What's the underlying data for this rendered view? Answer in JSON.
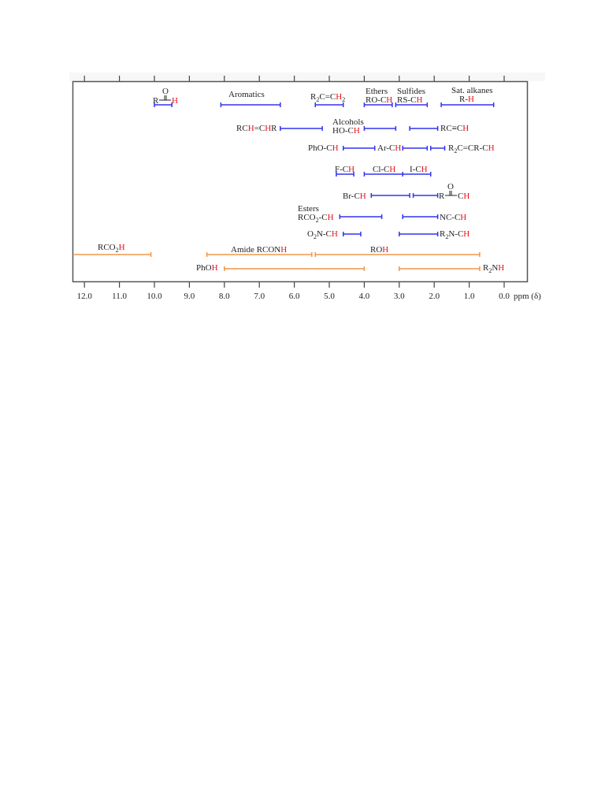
{
  "chart_data": {
    "type": "range-bar",
    "title": "",
    "xlabel": "ppm (δ)",
    "ylabel": "",
    "xlim": [
      12.0,
      0.0
    ],
    "x_reversed": true,
    "grid": false,
    "ticks": [
      "12.0",
      "11.0",
      "10.0",
      "9.0",
      "8.0",
      "7.0",
      "6.0",
      "5.0",
      "4.0",
      "3.0",
      "2.0",
      "1.0",
      "0.0"
    ],
    "tick_values": [
      12,
      11,
      10,
      9,
      8,
      7,
      6,
      5,
      4,
      3,
      2,
      1,
      0
    ],
    "colors": {
      "C-H": "#3333ee",
      "X-H": "#f0954a",
      "highlight_H": "#e8101a",
      "frame": "#555555"
    },
    "series": [
      {
        "name": "Aldehyde R-CO-H",
        "category": "C-H",
        "from": 10.0,
        "to": 9.5,
        "row": 0
      },
      {
        "name": "Aromatics",
        "category": "C-H",
        "from": 8.1,
        "to": 6.4,
        "row": 0
      },
      {
        "name": "R2C=CH2",
        "category": "C-H",
        "from": 5.4,
        "to": 4.6,
        "row": 0
      },
      {
        "name": "Ethers RO-CH",
        "category": "C-H",
        "from": 4.0,
        "to": 3.2,
        "row": 0
      },
      {
        "name": "Sulfides RS-CH",
        "category": "C-H",
        "from": 3.1,
        "to": 2.2,
        "row": 0
      },
      {
        "name": "Sat. alkanes R-H",
        "category": "C-H",
        "from": 1.8,
        "to": 0.3,
        "row": 0
      },
      {
        "name": "RCH=CHR",
        "category": "C-H",
        "from": 6.4,
        "to": 5.2,
        "row": 1
      },
      {
        "name": "Alcohols HO-CH",
        "category": "C-H",
        "from": 4.0,
        "to": 3.1,
        "row": 1
      },
      {
        "name": "RC≡CH",
        "category": "C-H",
        "from": 2.7,
        "to": 1.9,
        "row": 1
      },
      {
        "name": "PhO-CH",
        "category": "C-H",
        "from": 4.6,
        "to": 3.7,
        "row": 2
      },
      {
        "name": "Ar-CH",
        "category": "C-H",
        "from": 2.9,
        "to": 2.2,
        "row": 2
      },
      {
        "name": "R2C=CR-CH",
        "category": "C-H",
        "from": 2.1,
        "to": 1.7,
        "row": 2
      },
      {
        "name": "F-CH",
        "category": "C-H",
        "from": 4.8,
        "to": 4.3,
        "row": 3
      },
      {
        "name": "Cl-CH",
        "category": "C-H",
        "from": 4.0,
        "to": 2.9,
        "row": 3
      },
      {
        "name": "I-CH",
        "category": "C-H",
        "from": 2.9,
        "to": 2.1,
        "row": 3
      },
      {
        "name": "Br-CH",
        "category": "C-H",
        "from": 3.8,
        "to": 2.7,
        "row": 4
      },
      {
        "name": "R-CO-CH",
        "category": "C-H",
        "from": 2.6,
        "to": 1.9,
        "row": 4
      },
      {
        "name": "Esters RCO2-CH",
        "category": "C-H",
        "from": 4.7,
        "to": 3.5,
        "row": 5
      },
      {
        "name": "NC-CH",
        "category": "C-H",
        "from": 2.9,
        "to": 1.9,
        "row": 5
      },
      {
        "name": "O2N-CH",
        "category": "C-H",
        "from": 4.6,
        "to": 4.1,
        "row": 6
      },
      {
        "name": "R2N-CH",
        "category": "C-H",
        "from": 3.0,
        "to": 1.9,
        "row": 6
      },
      {
        "name": "RCO2H",
        "category": "X-H",
        "from": 12.3,
        "to": 10.1,
        "row": 7
      },
      {
        "name": "Amide RCONH",
        "category": "X-H",
        "from": 8.5,
        "to": 5.5,
        "row": 7
      },
      {
        "name": "ROH",
        "category": "X-H",
        "from": 5.4,
        "to": 0.7,
        "row": 7
      },
      {
        "name": "PhOH",
        "category": "X-H",
        "from": 8.0,
        "to": 4.0,
        "row": 8
      },
      {
        "name": "R2NH",
        "category": "X-H",
        "from": 3.0,
        "to": 0.7,
        "row": 8
      }
    ]
  },
  "axis": {
    "ticks": [
      "12.0",
      "11.0",
      "10.0",
      "9.0",
      "8.0",
      "7.0",
      "6.0",
      "5.0",
      "4.0",
      "3.0",
      "2.0",
      "1.0",
      "0.0"
    ],
    "unit_label": "ppm (δ)"
  },
  "labels": {
    "aldehyde": {
      "pre": "R",
      "o": "O",
      "post": "",
      "h": "H"
    },
    "aromatics": "Aromatics",
    "alkene_terminal": {
      "pre": "R",
      "sub1": "2",
      "mid": "C=C",
      "h": "H",
      "sub2": "2"
    },
    "ethers_group": "Ethers",
    "ethers": {
      "pre": "RO-C",
      "h": "H"
    },
    "sulfides_group": "Sulfides",
    "sulfides": {
      "pre": "RS-C",
      "h": "H"
    },
    "alkanes_group": "Sat. alkanes",
    "alkanes": {
      "pre": "R-",
      "h": "H"
    },
    "alkene_internal": {
      "p1": "RC",
      "h1": "H",
      "p2": "=C",
      "h2": "H",
      "p3": "R"
    },
    "alcohols_group": "Alcohols",
    "alcohols": {
      "pre": "HO-C",
      "h": "H"
    },
    "alkyne": {
      "pre": "RC≡C",
      "h": "H"
    },
    "phenyl_ether": {
      "pre": "PhO-C",
      "h": "H"
    },
    "benzylic": {
      "pre": "Ar-C",
      "h": "H"
    },
    "allylic": {
      "pre": "R",
      "sub": "2",
      "mid": "C=CR-C",
      "h": "H"
    },
    "fluoride": {
      "pre": "F-C",
      "h": "H"
    },
    "chloride": {
      "pre": "Cl-C",
      "h": "H"
    },
    "iodide": {
      "pre": "I-C",
      "h": "H"
    },
    "bromide": {
      "pre": "Br-C",
      "h": "H"
    },
    "ketone_alpha": {
      "pre": "R",
      "o": "O",
      "post": "C",
      "h": "H"
    },
    "esters_group": "Esters",
    "esters": {
      "pre": "RCO",
      "sub": "2",
      "mid": "-C",
      "h": "H"
    },
    "nitrile": {
      "pre": "NC-C",
      "h": "H"
    },
    "nitro": {
      "pre": "O",
      "sub": "2",
      "mid": "N-C",
      "h": "H"
    },
    "amine_alpha": {
      "pre": "R",
      "sub": "2",
      "mid": "N-C",
      "h": "H"
    },
    "carboxylic": {
      "pre": "RCO",
      "sub": "2",
      "h": "H"
    },
    "amide": {
      "pre": "Amide RCON",
      "h": "H"
    },
    "alcohol_oh": {
      "pre": "RO",
      "h": "H"
    },
    "phenol": {
      "pre": "PhO",
      "h": "H"
    },
    "amine_nh": {
      "pre": "R",
      "sub": "2",
      "mid": "N",
      "h": "H"
    }
  }
}
